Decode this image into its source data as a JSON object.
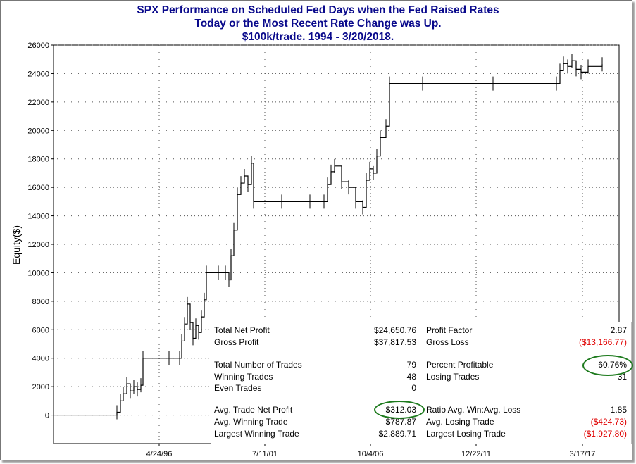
{
  "title": {
    "line1": "SPX Performance on Scheduled Fed Days when the Fed Raised Rates",
    "line2": "Today or the Most Recent Rate Change was Up.",
    "line3": "$100k/trade. 1994 - 3/20/2018."
  },
  "chart_data": {
    "type": "line",
    "ylabel": "Equity($)",
    "ylim": [
      -2000,
      26000
    ],
    "yticks": [
      "26000",
      "24000",
      "22000",
      "20000",
      "18000",
      "16000",
      "14000",
      "12000",
      "10000",
      "8000",
      "6000",
      "4000",
      "2000",
      "0"
    ],
    "xticks": [
      "4/24/96",
      "7/11/01",
      "10/4/06",
      "12/22/11",
      "3/17/17"
    ],
    "grid": true,
    "series": [
      {
        "values": [
          0,
          0,
          200,
          1000,
          1500,
          2200,
          1700,
          2000,
          1800,
          2100,
          4000,
          4000,
          4000,
          5200,
          6400,
          7800,
          6500,
          5400,
          6300,
          5800,
          6900,
          8100,
          10000,
          10000,
          10000,
          9500,
          11200,
          13000,
          15500,
          16300,
          16800,
          16200,
          17700,
          15000,
          15000,
          15000,
          15000,
          16200,
          17100,
          17500,
          16400,
          16000,
          15000,
          14600,
          16500,
          17300,
          17000,
          18200,
          19500,
          20300,
          23300,
          23300,
          23300,
          23300,
          24200,
          24700,
          24500,
          24900,
          24300,
          24100,
          24500,
          24650
        ]
      }
    ]
  },
  "stats": {
    "left": [
      {
        "label": "Total Net Profit",
        "value": "$24,650.76"
      },
      {
        "label": "Gross Profit",
        "value": "$37,817.53"
      },
      {
        "label": "Total Number of Trades",
        "value": "79"
      },
      {
        "label": "Winning Trades",
        "value": "48"
      },
      {
        "label": "Even Trades",
        "value": "0"
      },
      {
        "label": "Avg. Trade Net Profit",
        "value": "$312.03"
      },
      {
        "label": "Avg. Winning Trade",
        "value": "$787.87"
      },
      {
        "label": "Largest Winning Trade",
        "value": "$2,889.71"
      }
    ],
    "right": [
      {
        "label": "Profit Factor",
        "value": "2.87"
      },
      {
        "label": "Gross Loss",
        "value": "($13,166.77)"
      },
      {
        "label": "Percent Profitable",
        "value": "60.76%"
      },
      {
        "label": "Losing Trades",
        "value": "31"
      },
      {
        "label": "Ratio Avg. Win:Avg. Loss",
        "value": "1.85"
      },
      {
        "label": "Avg. Losing Trade",
        "value": "($424.73)"
      },
      {
        "label": "Largest Losing Trade",
        "value": "($1,927.80)"
      }
    ],
    "colors": {
      "negative": "#e00000",
      "highlight": "#1d7a1d"
    }
  }
}
